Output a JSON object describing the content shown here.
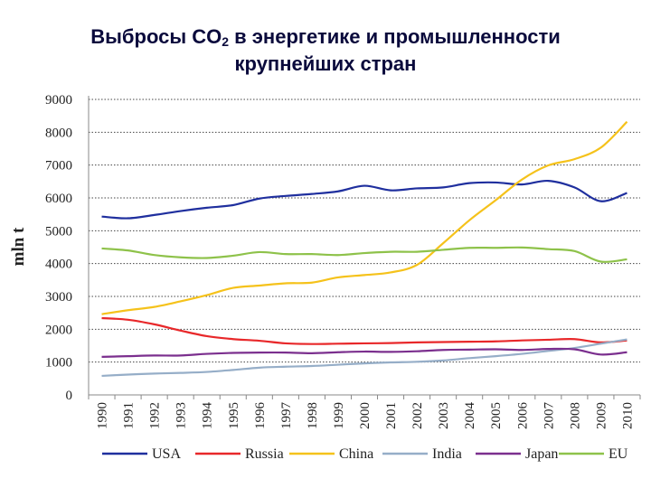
{
  "chart_data": {
    "type": "line",
    "title_prefix": "Выбросы CO",
    "title_sub": "2",
    "title_suffix": " в энергетике и промышленности",
    "title_line2": "крупнейших стран",
    "ylabel": "mln t",
    "xlabel": "",
    "ylim": [
      0,
      9000
    ],
    "yticks": [
      0,
      1000,
      2000,
      3000,
      4000,
      5000,
      6000,
      7000,
      8000,
      9000
    ],
    "grid": "horizontal dotted",
    "legend_position": "bottom",
    "x": [
      1990,
      1991,
      1992,
      1993,
      1994,
      1995,
      1996,
      1997,
      1998,
      1999,
      2000,
      2001,
      2002,
      2003,
      2004,
      2005,
      2006,
      2007,
      2008,
      2009,
      2010
    ],
    "series": [
      {
        "name": "USA",
        "color": "#1f2f9e",
        "values": [
          5430,
          5380,
          5480,
          5600,
          5700,
          5780,
          5980,
          6060,
          6120,
          6200,
          6370,
          6230,
          6290,
          6320,
          6450,
          6470,
          6410,
          6520,
          6320,
          5900,
          6150
        ]
      },
      {
        "name": "Russia",
        "color": "#e8282a",
        "values": [
          2340,
          2290,
          2150,
          1960,
          1790,
          1700,
          1650,
          1570,
          1550,
          1560,
          1570,
          1580,
          1600,
          1610,
          1620,
          1630,
          1660,
          1680,
          1700,
          1600,
          1660
        ]
      },
      {
        "name": "China",
        "color": "#f5c21b",
        "values": [
          2460,
          2580,
          2680,
          2850,
          3040,
          3260,
          3330,
          3400,
          3420,
          3580,
          3650,
          3730,
          3960,
          4620,
          5320,
          5930,
          6560,
          6990,
          7180,
          7530,
          8320
        ]
      },
      {
        "name": "India",
        "color": "#96aec8",
        "values": [
          580,
          620,
          650,
          670,
          700,
          760,
          830,
          860,
          880,
          920,
          960,
          990,
          1010,
          1050,
          1120,
          1180,
          1250,
          1340,
          1430,
          1560,
          1690
        ]
      },
      {
        "name": "Japan",
        "color": "#7b2f8e",
        "values": [
          1160,
          1180,
          1200,
          1200,
          1250,
          1280,
          1290,
          1290,
          1270,
          1300,
          1320,
          1310,
          1330,
          1370,
          1380,
          1390,
          1370,
          1400,
          1390,
          1230,
          1300
        ]
      },
      {
        "name": "EU",
        "color": "#8ec24a",
        "values": [
          4460,
          4400,
          4260,
          4190,
          4170,
          4240,
          4350,
          4290,
          4290,
          4260,
          4320,
          4360,
          4360,
          4420,
          4480,
          4480,
          4490,
          4440,
          4380,
          4060,
          4130
        ]
      }
    ]
  }
}
